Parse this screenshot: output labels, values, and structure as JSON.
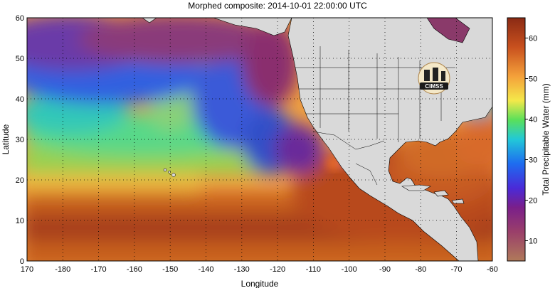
{
  "title": "Morphed composite: 2014-10-01 22:00:00 UTC",
  "map": {
    "xlabel": "Longitude",
    "ylabel": "Latitude",
    "x_ticks": [
      "170",
      "-180",
      "-170",
      "-160",
      "-150",
      "-140",
      "-130",
      "-120",
      "-110",
      "-100",
      "-90",
      "-80",
      "-70",
      "-60"
    ],
    "y_ticks": [
      "0",
      "10",
      "20",
      "30",
      "40",
      "50",
      "60"
    ],
    "grid": "dotted",
    "logo_text": "CIMSS",
    "colors": {
      "ocean_moist": "#b8501e",
      "dry": "#7a2b6e",
      "land": "#d9d9d9"
    }
  },
  "colorbar": {
    "label": "Total Precipitable Water (mm)",
    "ticks": [
      "10",
      "20",
      "30",
      "40",
      "50",
      "60"
    ],
    "range": [
      5,
      65
    ]
  }
}
